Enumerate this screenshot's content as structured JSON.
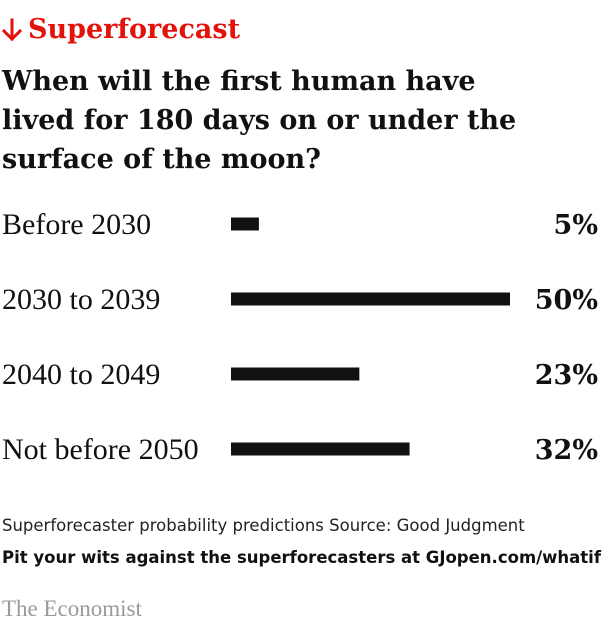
{
  "header": {
    "kicker": "Superforecast",
    "kicker_icon": "down-arrow-icon",
    "title": "When will the first human have\nlived for 180 days on or under the\nsurface of the moon?"
  },
  "colors": {
    "accent": "#e3120b",
    "bar": "#111111",
    "text": "#111111",
    "brand": "#9a9a9a"
  },
  "chart_data": {
    "type": "bar",
    "orientation": "horizontal",
    "categories": [
      "Before 2030",
      "2030 to 2039",
      "2040 to 2049",
      "Not before 2050"
    ],
    "values": [
      5,
      50,
      23,
      32
    ],
    "value_labels": [
      "5%",
      "50%",
      "23%",
      "32%"
    ],
    "unit": "%",
    "xlim": [
      0,
      50
    ],
    "grid": false,
    "legend": "none"
  },
  "footer": {
    "note": "Superforecaster probability predictions Source: Good Judgment",
    "cta": "Pit your wits against the superforecasters at GJopen.com/whatif",
    "brand": "The Economist"
  }
}
